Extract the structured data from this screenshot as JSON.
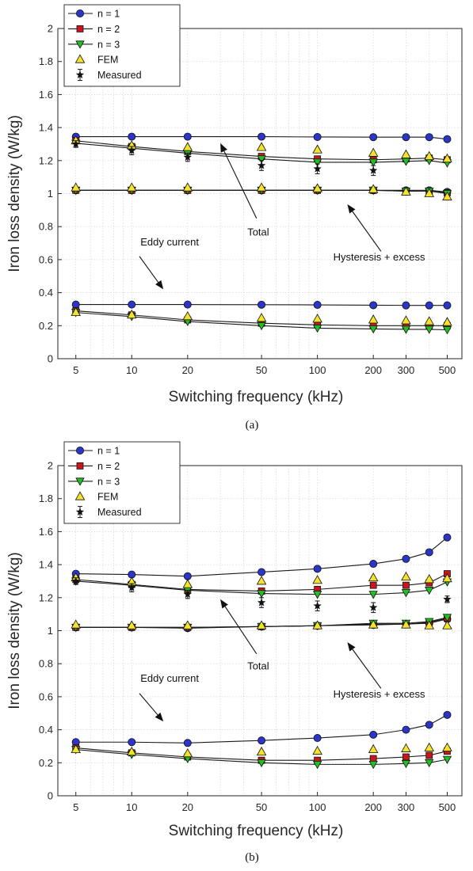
{
  "chart_data": [
    {
      "type": "line",
      "caption": "(a)",
      "xlabel": "Switching frequency (kHz)",
      "ylabel": "Iron loss density (W/kg)",
      "xscale": "log",
      "xlim": [
        4,
        600
      ],
      "ylim": [
        0,
        2
      ],
      "xticks": [
        5,
        10,
        20,
        50,
        100,
        200,
        300,
        500
      ],
      "yticks": [
        "0",
        "0.2",
        "0.4",
        "0.6",
        "0.8",
        "1",
        "1.2",
        "1.4",
        "1.6",
        "1.8",
        "2"
      ],
      "grid": true,
      "legend": {
        "placement": "top-left",
        "entries": [
          "n = 1",
          "n = 2",
          "n = 3",
          "FEM",
          "Measured"
        ]
      },
      "x": [
        5,
        10,
        20,
        50,
        100,
        200,
        300,
        400,
        500
      ],
      "series": [
        {
          "name": "n = 1",
          "group": "Total",
          "values": [
            1.345,
            1.345,
            1.345,
            1.345,
            1.343,
            1.342,
            1.342,
            1.342,
            1.33
          ]
        },
        {
          "name": "n = 2",
          "group": "Total",
          "values": [
            1.32,
            1.285,
            1.255,
            1.225,
            1.21,
            1.205,
            1.21,
            1.215,
            1.205
          ]
        },
        {
          "name": "n = 3",
          "group": "Total",
          "values": [
            1.305,
            1.275,
            1.245,
            1.21,
            1.19,
            1.19,
            1.195,
            1.2,
            1.185
          ]
        },
        {
          "name": "n = 1",
          "group": "Hysteresis + excess",
          "values": [
            1.02,
            1.02,
            1.02,
            1.02,
            1.02,
            1.02,
            1.02,
            1.02,
            1.01
          ]
        },
        {
          "name": "n = 2",
          "group": "Hysteresis + excess",
          "values": [
            1.02,
            1.02,
            1.02,
            1.02,
            1.02,
            1.02,
            1.015,
            1.015,
            1.005
          ]
        },
        {
          "name": "n = 3",
          "group": "Hysteresis + excess",
          "values": [
            1.02,
            1.02,
            1.02,
            1.02,
            1.02,
            1.02,
            1.015,
            1.015,
            1.0
          ]
        },
        {
          "name": "n = 1",
          "group": "Eddy current",
          "values": [
            0.328,
            0.328,
            0.328,
            0.327,
            0.326,
            0.324,
            0.323,
            0.323,
            0.323
          ]
        },
        {
          "name": "n = 2",
          "group": "Eddy current",
          "values": [
            0.29,
            0.265,
            0.235,
            0.215,
            0.205,
            0.2,
            0.2,
            0.2,
            0.2
          ]
        },
        {
          "name": "n = 3",
          "group": "Eddy current",
          "values": [
            0.28,
            0.255,
            0.225,
            0.2,
            0.185,
            0.18,
            0.178,
            0.178,
            0.175
          ]
        },
        {
          "name": "FEM",
          "group": "Total",
          "marker": "triangle",
          "values": [
            1.32,
            1.29,
            1.28,
            1.28,
            1.265,
            1.245,
            1.235,
            1.225,
            1.21
          ]
        },
        {
          "name": "FEM",
          "group": "Hysteresis + excess",
          "marker": "triangle",
          "values": [
            1.035,
            1.035,
            1.035,
            1.035,
            1.03,
            1.025,
            1.01,
            1.0,
            0.98
          ]
        },
        {
          "name": "FEM",
          "group": "Eddy current",
          "marker": "triangle",
          "values": [
            0.28,
            0.265,
            0.255,
            0.245,
            0.24,
            0.235,
            0.23,
            0.225,
            0.22
          ]
        },
        {
          "name": "Measured",
          "marker": "star",
          "x": [
            5,
            10,
            20,
            50,
            100,
            200
          ],
          "values": [
            1.3,
            1.26,
            1.22,
            1.17,
            1.15,
            1.14
          ],
          "err": [
            0.02,
            0.025,
            0.025,
            0.03,
            0.03,
            0.03
          ]
        }
      ],
      "annotations": [
        {
          "text": "Total",
          "x": 48,
          "y": 0.745,
          "arrow_to": [
            30,
            1.305
          ],
          "arrow_from": [
            47,
            0.85
          ]
        },
        {
          "text": "Eddy current",
          "x": 16,
          "y": 0.685,
          "arrow_to": [
            14.8,
            0.42
          ],
          "arrow_from": [
            11,
            0.62
          ]
        },
        {
          "text": "Hysteresis + excess",
          "x": 215,
          "y": 0.595,
          "arrow_to": [
            145,
            0.935
          ],
          "arrow_from": [
            220,
            0.65
          ]
        }
      ]
    },
    {
      "type": "line",
      "caption": "(b)",
      "xlabel": "Switching frequency (kHz)",
      "ylabel": "Iron loss density (W/kg)",
      "xscale": "log",
      "xlim": [
        4,
        600
      ],
      "ylim": [
        0,
        2
      ],
      "xticks": [
        5,
        10,
        20,
        50,
        100,
        200,
        300,
        500
      ],
      "yticks": [
        "0",
        "0.2",
        "0.4",
        "0.6",
        "0.8",
        "1",
        "1.2",
        "1.4",
        "1.6",
        "1.8",
        "2"
      ],
      "grid": true,
      "legend": {
        "placement": "top-left",
        "entries": [
          "n = 1",
          "n = 2",
          "n = 3",
          "FEM",
          "Measured"
        ]
      },
      "x": [
        5,
        10,
        20,
        50,
        100,
        200,
        300,
        400,
        500
      ],
      "series": [
        {
          "name": "n = 1",
          "group": "Total",
          "values": [
            1.345,
            1.34,
            1.33,
            1.355,
            1.375,
            1.405,
            1.435,
            1.475,
            1.565
          ]
        },
        {
          "name": "n = 2",
          "group": "Total",
          "values": [
            1.31,
            1.28,
            1.25,
            1.24,
            1.25,
            1.275,
            1.275,
            1.29,
            1.345
          ]
        },
        {
          "name": "n = 3",
          "group": "Total",
          "values": [
            1.3,
            1.275,
            1.245,
            1.225,
            1.22,
            1.22,
            1.23,
            1.245,
            1.295
          ]
        },
        {
          "name": "n = 1",
          "group": "Hysteresis + excess",
          "values": [
            1.02,
            1.02,
            1.015,
            1.025,
            1.03,
            1.035,
            1.04,
            1.045,
            1.07
          ]
        },
        {
          "name": "n = 2",
          "group": "Hysteresis + excess",
          "values": [
            1.02,
            1.02,
            1.02,
            1.025,
            1.03,
            1.04,
            1.04,
            1.05,
            1.075
          ]
        },
        {
          "name": "n = 3",
          "group": "Hysteresis + excess",
          "values": [
            1.02,
            1.02,
            1.02,
            1.025,
            1.03,
            1.045,
            1.045,
            1.055,
            1.08
          ]
        },
        {
          "name": "n = 1",
          "group": "Eddy current",
          "values": [
            0.325,
            0.325,
            0.32,
            0.335,
            0.35,
            0.37,
            0.4,
            0.43,
            0.49
          ]
        },
        {
          "name": "n = 2",
          "group": "Eddy current",
          "values": [
            0.29,
            0.26,
            0.235,
            0.215,
            0.215,
            0.225,
            0.235,
            0.245,
            0.27
          ]
        },
        {
          "name": "n = 3",
          "group": "Eddy current",
          "values": [
            0.28,
            0.25,
            0.225,
            0.2,
            0.19,
            0.19,
            0.195,
            0.2,
            0.22
          ]
        },
        {
          "name": "FEM",
          "group": "Total",
          "marker": "triangle",
          "values": [
            1.32,
            1.295,
            1.28,
            1.3,
            1.305,
            1.32,
            1.325,
            1.31,
            1.315
          ]
        },
        {
          "name": "FEM",
          "group": "Hysteresis + excess",
          "marker": "triangle",
          "values": [
            1.035,
            1.03,
            1.03,
            1.03,
            1.03,
            1.035,
            1.035,
            1.03,
            1.03
          ]
        },
        {
          "name": "FEM",
          "group": "Eddy current",
          "marker": "triangle",
          "values": [
            0.28,
            0.265,
            0.255,
            0.265,
            0.27,
            0.28,
            0.285,
            0.29,
            0.29
          ]
        },
        {
          "name": "Measured",
          "marker": "star",
          "x": [
            5,
            10,
            20,
            50,
            100,
            200,
            500
          ],
          "values": [
            1.3,
            1.26,
            1.22,
            1.17,
            1.15,
            1.14,
            1.19
          ],
          "err": [
            0.02,
            0.025,
            0.025,
            0.03,
            0.03,
            0.03,
            0.02
          ]
        }
      ],
      "annotations": [
        {
          "text": "Total",
          "x": 48,
          "y": 0.765,
          "arrow_to": [
            30,
            1.19
          ],
          "arrow_from": [
            47,
            0.86
          ]
        },
        {
          "text": "Eddy current",
          "x": 16,
          "y": 0.69,
          "arrow_to": [
            14.8,
            0.45
          ],
          "arrow_from": [
            11,
            0.62
          ]
        },
        {
          "text": "Hysteresis + excess",
          "x": 215,
          "y": 0.595,
          "arrow_to": [
            145,
            0.93
          ],
          "arrow_from": [
            220,
            0.65
          ]
        }
      ]
    }
  ],
  "colors": {
    "n1": "#2b35c8",
    "n2": "#c8161c",
    "n3": "#20c020",
    "fem": "#f4e22c",
    "line": "#1a1a1a",
    "grid": "#d6d6d6",
    "axes": "#262626"
  }
}
